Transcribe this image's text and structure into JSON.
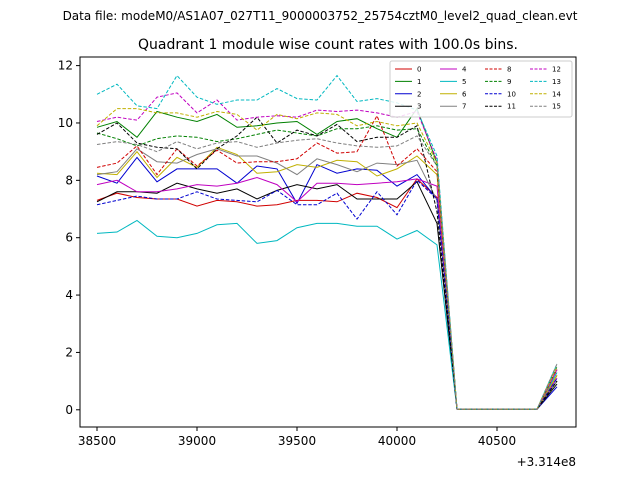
{
  "figure": {
    "suptitle": "Data file: modeM0/AS1A07_027T11_9000003752_25754cztM0_level2_quad_clean.evt",
    "title": "Quadrant 1 module wise count rates with 100.0s bins.",
    "offset_label": "+3.314e8"
  },
  "chart_data": {
    "type": "line",
    "xlim": [
      38415,
      40895
    ],
    "ylim": [
      -0.6,
      12.3
    ],
    "x_ticks": [
      38500,
      39000,
      39500,
      40000,
      40500
    ],
    "x_tick_labels": [
      "38500",
      "39000",
      "39500",
      "40000",
      "40500"
    ],
    "y_ticks": [
      0,
      2,
      4,
      6,
      8,
      10,
      12
    ],
    "y_tick_labels": [
      "0",
      "2",
      "4",
      "6",
      "8",
      "10",
      "12"
    ],
    "x": [
      38500,
      38600,
      38700,
      38800,
      38900,
      39000,
      39100,
      39200,
      39300,
      39400,
      39500,
      39600,
      39700,
      39800,
      39900,
      40000,
      40100,
      40200,
      40300,
      40400,
      40500,
      40600,
      40700,
      40800
    ],
    "legend_position": "top-right",
    "series": [
      {
        "name": "0",
        "color": "#d00000",
        "dash": "solid",
        "values": [
          7.3,
          7.55,
          7.4,
          7.35,
          7.35,
          7.1,
          7.3,
          7.25,
          7.1,
          7.15,
          7.3,
          7.3,
          7.25,
          7.55,
          7.4,
          7.05,
          8.05,
          7.4,
          0.02,
          0.02,
          0.02,
          0.02,
          0.02,
          1.2
        ]
      },
      {
        "name": "1",
        "color": "#008000",
        "dash": "solid",
        "values": [
          9.85,
          10.05,
          9.5,
          10.4,
          10.2,
          10.05,
          10.3,
          9.85,
          9.9,
          10.0,
          10.05,
          9.6,
          10.05,
          10.15,
          9.8,
          9.5,
          10.5,
          8.6,
          0.02,
          0.02,
          0.02,
          0.02,
          0.02,
          1.0
        ]
      },
      {
        "name": "2",
        "color": "#0000d0",
        "dash": "solid",
        "values": [
          8.15,
          7.9,
          8.8,
          7.95,
          8.4,
          8.4,
          8.4,
          7.9,
          8.5,
          8.4,
          7.2,
          8.55,
          8.25,
          8.4,
          8.35,
          7.8,
          8.2,
          7.35,
          0.02,
          0.02,
          0.02,
          0.02,
          0.02,
          0.8
        ]
      },
      {
        "name": "3",
        "color": "#000000",
        "dash": "solid",
        "values": [
          7.25,
          7.6,
          7.6,
          7.55,
          7.9,
          7.7,
          7.55,
          7.7,
          7.35,
          7.65,
          7.85,
          7.7,
          7.85,
          7.35,
          7.35,
          7.35,
          7.95,
          6.5,
          0.02,
          0.02,
          0.02,
          0.02,
          0.02,
          0.9
        ]
      },
      {
        "name": "4",
        "color": "#c000c0",
        "dash": "solid",
        "values": [
          7.85,
          8.0,
          7.6,
          7.6,
          7.7,
          7.85,
          7.8,
          7.9,
          8.1,
          7.85,
          7.25,
          7.9,
          7.9,
          7.85,
          7.9,
          7.95,
          8.05,
          7.8,
          0.02,
          0.02,
          0.02,
          0.02,
          0.02,
          1.1
        ]
      },
      {
        "name": "5",
        "color": "#00b8c0",
        "dash": "solid",
        "values": [
          6.15,
          6.2,
          6.6,
          6.05,
          6.0,
          6.15,
          6.45,
          6.5,
          5.8,
          5.9,
          6.35,
          6.5,
          6.5,
          6.4,
          6.4,
          5.95,
          6.25,
          5.75,
          0.02,
          0.02,
          0.02,
          0.02,
          0.02,
          1.3
        ]
      },
      {
        "name": "6",
        "color": "#c0b000",
        "dash": "solid",
        "values": [
          8.25,
          8.2,
          9.0,
          8.1,
          8.8,
          8.45,
          9.15,
          8.9,
          8.25,
          8.3,
          8.55,
          8.45,
          8.7,
          8.65,
          8.15,
          8.4,
          8.85,
          8.2,
          0.02,
          0.02,
          0.02,
          0.02,
          0.02,
          1.2
        ]
      },
      {
        "name": "7",
        "color": "#808080",
        "dash": "solid",
        "values": [
          8.2,
          8.3,
          9.1,
          8.65,
          8.6,
          8.9,
          9.1,
          8.85,
          8.85,
          8.6,
          8.2,
          8.75,
          8.55,
          8.3,
          8.6,
          8.55,
          8.7,
          7.3,
          0.02,
          0.02,
          0.02,
          0.02,
          0.02,
          1.0
        ]
      },
      {
        "name": "8",
        "color": "#d00000",
        "dash": "dashed",
        "values": [
          8.45,
          8.6,
          9.2,
          8.2,
          9.1,
          8.5,
          9.05,
          8.6,
          8.65,
          8.65,
          8.75,
          9.3,
          8.95,
          9.0,
          10.25,
          8.5,
          9.1,
          8.3,
          0.02,
          0.02,
          0.02,
          0.02,
          0.02,
          1.4
        ]
      },
      {
        "name": "9",
        "color": "#008000",
        "dash": "dashed",
        "values": [
          9.65,
          9.45,
          9.2,
          9.45,
          9.55,
          9.5,
          9.35,
          9.45,
          9.6,
          9.75,
          9.65,
          9.55,
          9.8,
          9.8,
          9.9,
          9.75,
          9.8,
          8.5,
          0.02,
          0.02,
          0.02,
          0.02,
          0.02,
          1.5
        ]
      },
      {
        "name": "10",
        "color": "#0000d0",
        "dash": "dashed",
        "values": [
          7.15,
          7.3,
          7.45,
          7.35,
          7.35,
          7.6,
          7.35,
          7.3,
          7.25,
          7.65,
          7.15,
          7.15,
          7.55,
          6.65,
          7.6,
          6.8,
          8.0,
          7.35,
          0.02,
          0.02,
          0.02,
          0.02,
          0.02,
          1.1
        ]
      },
      {
        "name": "11",
        "color": "#000000",
        "dash": "dashed",
        "values": [
          9.6,
          10.0,
          9.3,
          9.15,
          9.1,
          8.4,
          9.1,
          9.55,
          10.2,
          9.3,
          9.75,
          9.55,
          9.95,
          9.35,
          9.5,
          9.5,
          9.9,
          6.9,
          0.02,
          0.02,
          0.02,
          0.02,
          0.02,
          1.0
        ]
      },
      {
        "name": "12",
        "color": "#c000c0",
        "dash": "dashed",
        "values": [
          10.05,
          10.2,
          10.1,
          10.9,
          11.05,
          10.35,
          10.8,
          10.1,
          10.2,
          10.25,
          10.2,
          10.45,
          10.4,
          10.45,
          10.35,
          10.2,
          10.4,
          8.7,
          0.02,
          0.02,
          0.02,
          0.02,
          0.02,
          1.4
        ]
      },
      {
        "name": "13",
        "color": "#00b8c0",
        "dash": "dashed",
        "values": [
          11.0,
          11.35,
          10.6,
          10.5,
          11.65,
          10.9,
          10.65,
          10.8,
          10.8,
          11.2,
          10.85,
          10.8,
          11.65,
          10.75,
          10.85,
          10.7,
          10.45,
          8.85,
          0.02,
          0.02,
          0.02,
          0.02,
          0.02,
          1.6
        ]
      },
      {
        "name": "14",
        "color": "#c0b000",
        "dash": "dashed",
        "values": [
          9.9,
          10.5,
          10.5,
          10.35,
          10.35,
          10.2,
          10.4,
          10.3,
          9.75,
          10.3,
          10.15,
          10.35,
          10.3,
          9.9,
          10.05,
          9.9,
          10.0,
          8.6,
          0.02,
          0.02,
          0.02,
          0.02,
          0.02,
          1.5
        ]
      },
      {
        "name": "15",
        "color": "#808080",
        "dash": "dashed",
        "values": [
          9.25,
          9.35,
          9.25,
          9.0,
          9.35,
          9.1,
          9.3,
          9.35,
          9.15,
          9.3,
          9.4,
          9.45,
          9.3,
          9.2,
          9.15,
          9.2,
          9.55,
          8.5,
          0.02,
          0.02,
          0.02,
          0.02,
          0.02,
          1.6
        ]
      }
    ]
  }
}
